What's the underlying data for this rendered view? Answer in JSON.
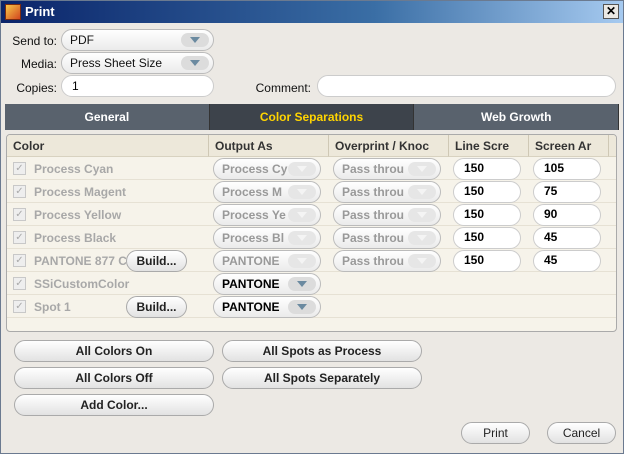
{
  "window": {
    "title": "Print",
    "close": "✕"
  },
  "form": {
    "send_to_label": "Send to:",
    "send_to": "PDF",
    "media_label": "Media:",
    "media": "Press Sheet Size",
    "copies_label": "Copies:",
    "copies": "1",
    "comment_label": "Comment:",
    "comment": ""
  },
  "tabs": [
    {
      "label": "General",
      "active": false
    },
    {
      "label": "Color Separations",
      "active": true
    },
    {
      "label": "Web Growth",
      "active": false
    }
  ],
  "table": {
    "headers": [
      "Color",
      "Output As",
      "Overprint / Knoc",
      "Line Scre",
      "Screen Ar"
    ],
    "rows": [
      {
        "checked": true,
        "name": "Process Cyan",
        "build": null,
        "output": "Process Cy",
        "output_enabled": false,
        "overprint": "Pass throu",
        "line": "150",
        "angle": "105"
      },
      {
        "checked": true,
        "name": "Process Magent",
        "build": null,
        "output": "Process M",
        "output_enabled": false,
        "overprint": "Pass throu",
        "line": "150",
        "angle": "75"
      },
      {
        "checked": true,
        "name": "Process Yellow",
        "build": null,
        "output": "Process Ye",
        "output_enabled": false,
        "overprint": "Pass throu",
        "line": "150",
        "angle": "90"
      },
      {
        "checked": true,
        "name": "Process Black",
        "build": null,
        "output": "Process Bl",
        "output_enabled": false,
        "overprint": "Pass throu",
        "line": "150",
        "angle": "45"
      },
      {
        "checked": true,
        "name": "PANTONE 877 C",
        "build": "Build...",
        "output": "PANTONE",
        "output_enabled": false,
        "overprint": "Pass throu",
        "line": "150",
        "angle": "45"
      },
      {
        "checked": true,
        "name": "SSiCustomColor",
        "build": null,
        "output": "PANTONE",
        "output_enabled": true,
        "overprint": null,
        "line": null,
        "angle": null
      },
      {
        "checked": true,
        "name": "Spot 1",
        "build": "Build...",
        "output": "PANTONE",
        "output_enabled": true,
        "overprint": null,
        "line": null,
        "angle": null
      }
    ]
  },
  "buttons": {
    "all_on": "All Colors On",
    "all_off": "All Colors Off",
    "add_color": "Add Color...",
    "spots_process": "All Spots as Process",
    "spots_separately": "All Spots Separately",
    "print": "Print",
    "cancel": "Cancel"
  }
}
